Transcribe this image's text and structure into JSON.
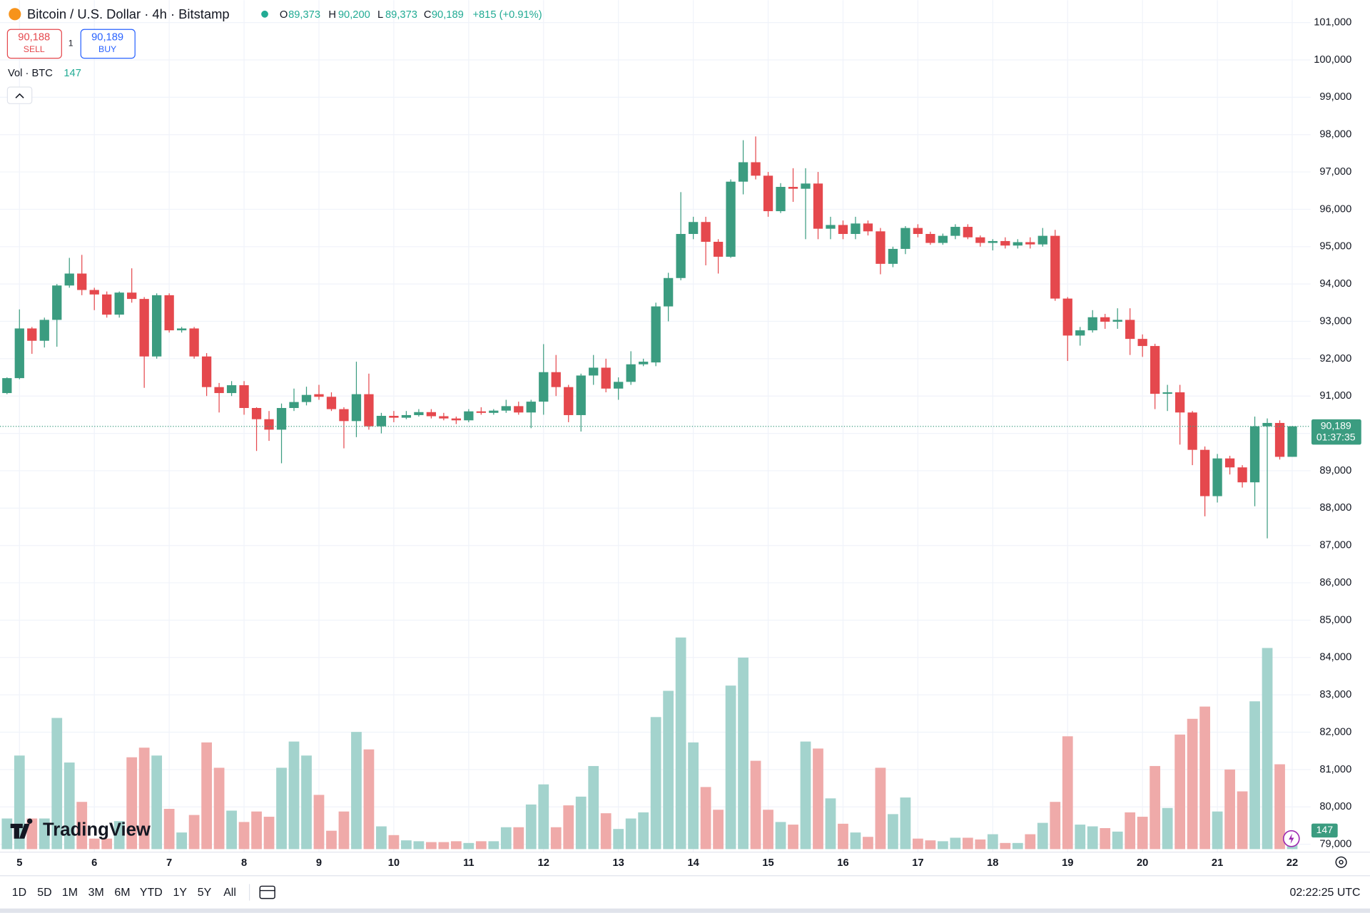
{
  "header": {
    "symbol": "Bitcoin / U.S. Dollar · 4h · Bitstamp",
    "o_label": "O",
    "open": "89,373",
    "h_label": "H",
    "high": "90,200",
    "l_label": "L",
    "low": "89,373",
    "c_label": "C",
    "close": "90,189",
    "change": "+815 (+0.91%)"
  },
  "trade": {
    "sell_price": "90,188",
    "sell": "SELL",
    "quantity": "1",
    "buy_price": "90,189",
    "buy": "BUY"
  },
  "volume_legend": {
    "label": "Vol · BTC",
    "value": "147"
  },
  "price_tag": {
    "price": "90,189",
    "countdown": "01:37:35"
  },
  "volume_tag": "147",
  "watermark": "TradingView",
  "ranges": [
    "1D",
    "5D",
    "1M",
    "3M",
    "6M",
    "YTD",
    "1Y",
    "5Y",
    "All"
  ],
  "clock": "02:22:25 UTC",
  "chart_data": {
    "type": "candlestick",
    "categories": [
      null,
      "5",
      null,
      null,
      null,
      null,
      null,
      "6",
      null,
      null,
      null,
      null,
      null,
      "7",
      null,
      null,
      null,
      null,
      null,
      "8",
      null,
      null,
      null,
      null,
      null,
      "9",
      null,
      null,
      null,
      null,
      null,
      "10",
      null,
      null,
      null,
      null,
      null,
      "11",
      null,
      null,
      null,
      null,
      null,
      "12",
      null,
      null,
      null,
      null,
      null,
      "13",
      null,
      null,
      null,
      null,
      null,
      "14",
      null,
      null,
      null,
      null,
      null,
      "15",
      null,
      null,
      null,
      null,
      null,
      "16",
      null,
      null,
      null,
      null,
      null,
      "17",
      null,
      null,
      null,
      null,
      null,
      "18",
      null,
      null,
      null,
      null,
      null,
      "19",
      null,
      null,
      null,
      null,
      null,
      "20",
      null,
      null,
      null,
      null,
      null,
      "21",
      null,
      null,
      null,
      null,
      null,
      "22"
    ],
    "open": [
      91080,
      91480,
      92810,
      92480,
      93040,
      93960,
      94280,
      93840,
      93720,
      93180,
      93770,
      93600,
      92060,
      93700,
      92760,
      92810,
      92060,
      91240,
      91080,
      91290,
      90680,
      90380,
      90100,
      90680,
      90840,
      91050,
      90980,
      90650,
      90330,
      91050,
      90190,
      90470,
      90420,
      90490,
      90570,
      90460,
      90400,
      90350,
      90590,
      90550,
      90610,
      90730,
      90560,
      90850,
      91640,
      91240,
      90490,
      91550,
      91760,
      91200,
      91380,
      91850,
      91900,
      93400,
      94160,
      95340,
      95660,
      95130,
      94730,
      96740,
      97260,
      96900,
      95950,
      96600,
      96550,
      96690,
      95480,
      95580,
      95340,
      95620,
      95410,
      94540,
      94940,
      95500,
      95340,
      95100,
      95290,
      95530,
      95250,
      95100,
      95150,
      95030,
      95120,
      95060,
      95290,
      93610,
      92620,
      92760,
      93110,
      92990,
      93040,
      92530,
      92340,
      91060,
      91100,
      90560,
      89560,
      88320,
      89330,
      89090,
      88690,
      90190,
      90280,
      89373
    ],
    "high": [
      91500,
      93320,
      92850,
      93100,
      94000,
      94700,
      94780,
      93900,
      93800,
      93800,
      94420,
      93650,
      93750,
      93750,
      92850,
      92850,
      92150,
      91350,
      91400,
      91400,
      90700,
      90600,
      90800,
      91200,
      91250,
      91300,
      91100,
      90700,
      91920,
      91600,
      90550,
      90600,
      90600,
      90650,
      90650,
      90550,
      90450,
      90650,
      90700,
      90650,
      90900,
      90850,
      90900,
      92390,
      92100,
      91300,
      91600,
      92100,
      92000,
      91500,
      92200,
      92000,
      93500,
      94300,
      96460,
      95800,
      95800,
      95200,
      96800,
      97850,
      97950,
      97000,
      96700,
      97100,
      97100,
      97000,
      95800,
      95700,
      95800,
      95700,
      95500,
      95000,
      95550,
      95600,
      95400,
      95350,
      95600,
      95600,
      95300,
      95200,
      95250,
      95200,
      95250,
      95500,
      95450,
      93650,
      92850,
      93300,
      93200,
      93350,
      93350,
      92650,
      92400,
      91300,
      91300,
      90600,
      89650,
      89450,
      89400,
      89150,
      90450,
      90400,
      90350,
      90200
    ],
    "low": [
      91050,
      91450,
      92130,
      92300,
      92320,
      93900,
      93700,
      93300,
      93100,
      93100,
      93500,
      91220,
      92000,
      92700,
      92700,
      92000,
      91000,
      90560,
      91000,
      90500,
      89530,
      89800,
      89200,
      90600,
      90750,
      90900,
      90600,
      89600,
      89900,
      90100,
      90000,
      90300,
      90380,
      90450,
      90400,
      90350,
      90250,
      90300,
      90500,
      90500,
      90550,
      90500,
      90140,
      90500,
      91000,
      90300,
      90050,
      91300,
      91100,
      90900,
      91300,
      91800,
      91800,
      93000,
      94100,
      95200,
      94500,
      94280,
      94700,
      96400,
      96800,
      95800,
      95900,
      96200,
      95200,
      95200,
      95200,
      95200,
      95200,
      95300,
      94260,
      94450,
      94800,
      95250,
      95050,
      95050,
      95200,
      95200,
      95000,
      94900,
      94950,
      94950,
      94950,
      95000,
      93550,
      91940,
      92350,
      92700,
      92800,
      92800,
      92100,
      92050,
      90650,
      90600,
      89700,
      89150,
      87780,
      88150,
      88900,
      88550,
      88050,
      87190,
      89300,
      89373
    ],
    "close": [
      91480,
      92810,
      92480,
      93040,
      93960,
      94280,
      93840,
      93720,
      93180,
      93770,
      93600,
      92060,
      93700,
      92760,
      92810,
      92060,
      91240,
      91080,
      91290,
      90680,
      90380,
      90100,
      90680,
      90840,
      91030,
      90980,
      90650,
      90330,
      91050,
      90190,
      90470,
      90420,
      90490,
      90570,
      90460,
      90400,
      90350,
      90590,
      90550,
      90610,
      90730,
      90560,
      90850,
      91640,
      91240,
      90490,
      91550,
      91760,
      91200,
      91380,
      91850,
      91920,
      93400,
      94160,
      95340,
      95660,
      95130,
      94730,
      96740,
      97260,
      96900,
      95950,
      96600,
      96550,
      96690,
      95480,
      95580,
      95340,
      95620,
      95410,
      94540,
      94940,
      95500,
      95340,
      95100,
      95290,
      95530,
      95250,
      95100,
      95150,
      95030,
      95120,
      95060,
      95290,
      93610,
      92620,
      92760,
      93110,
      92990,
      93040,
      92530,
      92340,
      91060,
      91100,
      90560,
      89560,
      88320,
      89330,
      89090,
      88690,
      90190,
      90280,
      89373,
      90189
    ],
    "volume": [
      420,
      1284,
      420,
      420,
      1800,
      1188,
      648,
      144,
      144,
      384,
      1260,
      1392,
      1284,
      552,
      228,
      468,
      1464,
      1116,
      528,
      372,
      516,
      444,
      1116,
      1476,
      1284,
      744,
      252,
      516,
      1608,
      1368,
      312,
      192,
      120,
      108,
      96,
      96,
      108,
      84,
      108,
      108,
      300,
      300,
      612,
      888,
      300,
      600,
      720,
      1140,
      492,
      276,
      420,
      504,
      1812,
      2172,
      2904,
      1464,
      852,
      540,
      2244,
      2628,
      1212,
      540,
      372,
      336,
      1476,
      1380,
      696,
      348,
      228,
      168,
      1116,
      480,
      708,
      144,
      120,
      108,
      156,
      156,
      132,
      204,
      84,
      84,
      204,
      360,
      648,
      1548,
      336,
      312,
      288,
      240,
      504,
      444,
      1140,
      564,
      1572,
      1788,
      1956,
      516,
      1092,
      792,
      2028,
      2760,
      1164,
      147
    ],
    "ylim": [
      78800,
      101600
    ],
    "yticks": [
      {
        "value": 79000,
        "label": "79,000"
      },
      {
        "value": 80000,
        "label": "80,000"
      },
      {
        "value": 81000,
        "label": "81,000"
      },
      {
        "value": 82000,
        "label": "82,000"
      },
      {
        "value": 83000,
        "label": "83,000"
      },
      {
        "value": 84000,
        "label": "84,000"
      },
      {
        "value": 85000,
        "label": "85,000"
      },
      {
        "value": 86000,
        "label": "86,000"
      },
      {
        "value": 87000,
        "label": "87,000"
      },
      {
        "value": 88000,
        "label": "88,000"
      },
      {
        "value": 89000,
        "label": "89,000"
      },
      {
        "value": 90000,
        "label": "90,000"
      },
      {
        "value": 91000,
        "label": "91,000"
      },
      {
        "value": 92000,
        "label": "92,000"
      },
      {
        "value": 93000,
        "label": "93,000"
      },
      {
        "value": 94000,
        "label": "94,000"
      },
      {
        "value": 95000,
        "label": "95,000"
      },
      {
        "value": 96000,
        "label": "96,000"
      },
      {
        "value": 97000,
        "label": "97,000"
      },
      {
        "value": 98000,
        "label": "98,000"
      },
      {
        "value": 99000,
        "label": "99,000"
      },
      {
        "value": 100000,
        "label": "100,000"
      },
      {
        "value": 101000,
        "label": "101,000"
      }
    ],
    "volume_ylim": [
      0,
      3500
    ],
    "grid": true,
    "up_color": "#3b9c80",
    "down_color": "#e5484d",
    "volume_up_color": "#a3d3cd",
    "volume_down_color": "#efaaa9"
  }
}
